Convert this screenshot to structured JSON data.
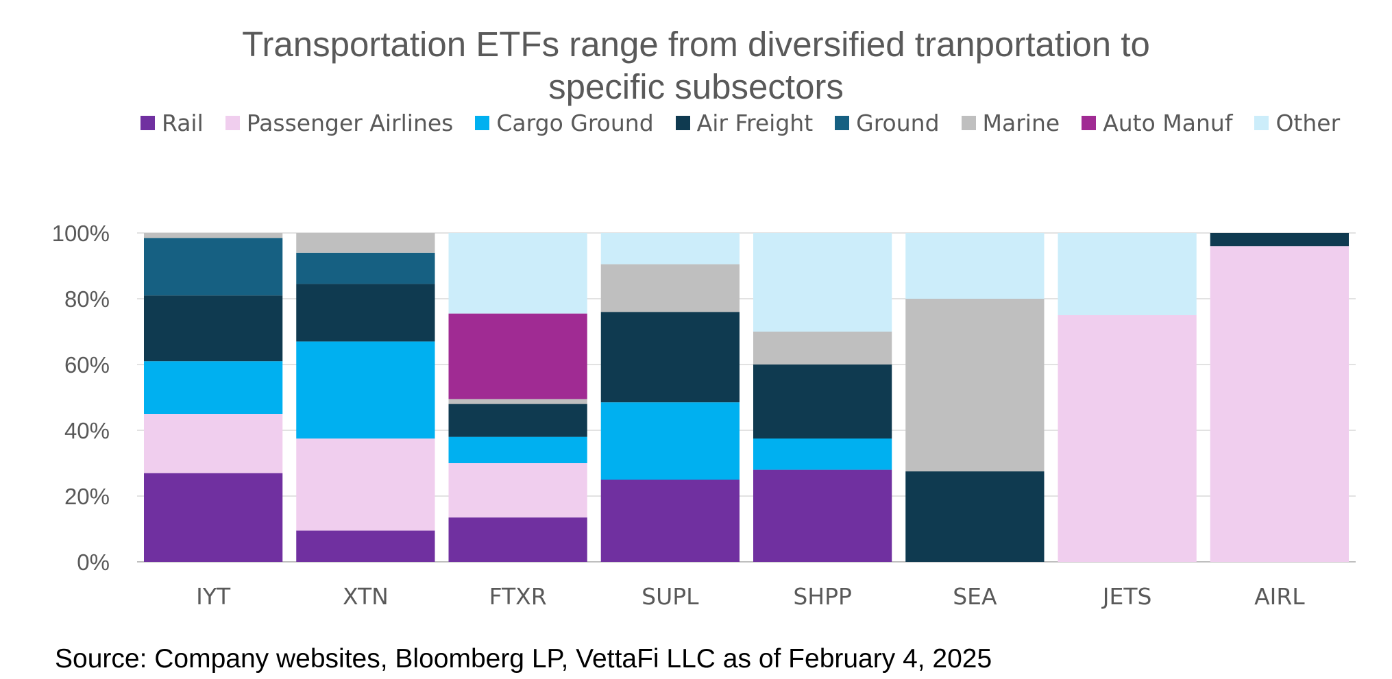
{
  "chart_data": {
    "type": "bar",
    "stacked": true,
    "title_lines": [
      "Transportation ETFs range from diversified tranportation to",
      "specific subsectors"
    ],
    "source": "Source: Company websites, Bloomberg LP, VettaFi LLC as of February 4, 2025",
    "categories": [
      "IYT",
      "XTN",
      "FTXR",
      "SUPL",
      "SHPP",
      "SEA",
      "JETS",
      "AIRL"
    ],
    "ylim": [
      0,
      100
    ],
    "yticks": [
      "0%",
      "20%",
      "40%",
      "60%",
      "80%",
      "100%"
    ],
    "grid": true,
    "legend_position": "top",
    "series": [
      {
        "name": "Rail",
        "color": "#7030A0",
        "values": [
          27,
          9.5,
          13.5,
          25,
          28,
          0,
          0,
          0
        ]
      },
      {
        "name": "Passenger Airlines",
        "color": "#F0CEEE",
        "values": [
          18,
          28,
          16.5,
          0,
          0,
          0,
          75,
          96
        ]
      },
      {
        "name": "Cargo Ground",
        "color": "#00B0F0",
        "values": [
          16,
          29.5,
          8,
          23.5,
          9.5,
          0,
          0,
          0
        ]
      },
      {
        "name": "Air Freight",
        "color": "#0F3A50",
        "values": [
          20,
          17.5,
          10,
          27.5,
          22.5,
          27.5,
          0,
          4
        ]
      },
      {
        "name": "Ground",
        "color": "#166082",
        "values": [
          17.5,
          9.5,
          0,
          0,
          0,
          0,
          0,
          0
        ]
      },
      {
        "name": "Marine",
        "color": "#BFBFBF",
        "values": [
          1.5,
          6,
          1.5,
          14.5,
          10,
          52.5,
          0,
          0
        ]
      },
      {
        "name": "Auto Manuf",
        "color": "#A02B93",
        "values": [
          0,
          0,
          26,
          0,
          0,
          0,
          0,
          0
        ]
      },
      {
        "name": "Other",
        "color": "#CCEDFA",
        "values": [
          0,
          0,
          24.5,
          9.5,
          30,
          20,
          25,
          0
        ]
      }
    ]
  }
}
